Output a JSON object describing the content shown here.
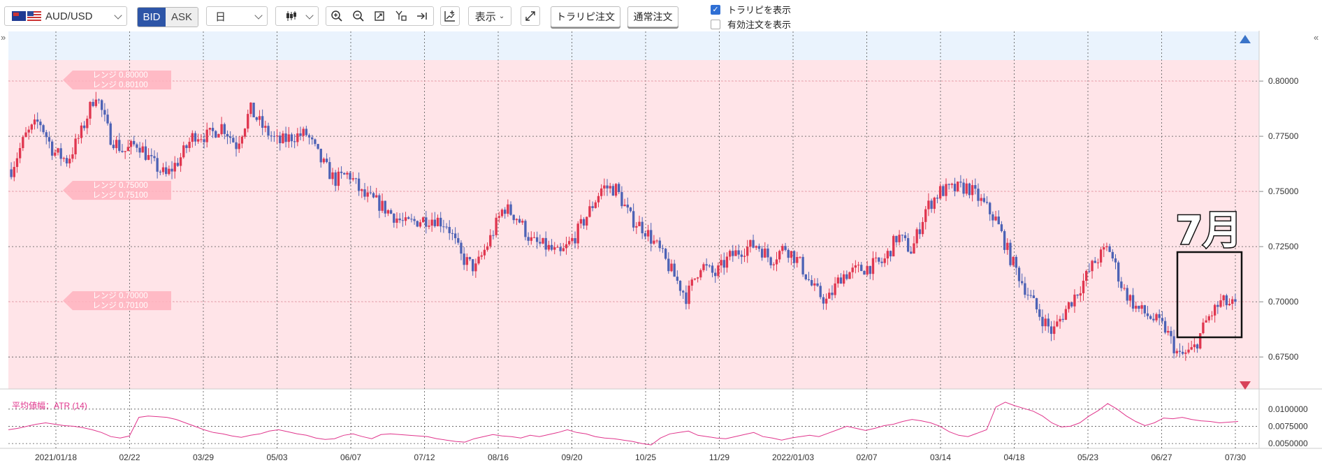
{
  "toolbar": {
    "symbol": "AUD/USD",
    "bid_label": "BID",
    "ask_label": "ASK",
    "period": "日",
    "display_label": "表示",
    "traripi_order": "トラリピ注文",
    "normal_order": "通常注文",
    "show_traripi": "トラリピを表示",
    "show_traripi_checked": true,
    "show_active_orders": "有効注文を表示",
    "show_active_orders_checked": false
  },
  "icons": [
    "candlestick-icon",
    "zoom-in-icon",
    "zoom-out-icon",
    "fit-icon",
    "crosshair-icon",
    "scroll-to-end-icon",
    "add-indicator-icon",
    "fullscreen-icon",
    "collapse-left-icon",
    "collapse-right-icon"
  ],
  "colors": {
    "up": "#e0364f",
    "down": "#4d62b5",
    "atr_line": "#e0358c",
    "range_band": "#ffe4e8",
    "upper_band": "#eaf3fd"
  },
  "annotation": {
    "text": "7月"
  },
  "range_labels": [
    "レンジ 0.80000",
    "レンジ 0.80100",
    "レンジ 0.75000",
    "レンジ 0.75100",
    "レンジ 0.70000",
    "レンジ 0.70100"
  ],
  "chart_data": [
    {
      "type": "candlestick",
      "x_labels": [
        "2021/01/18",
        "02/22",
        "03/29",
        "05/03",
        "06/07",
        "07/12",
        "08/16",
        "09/20",
        "10/25",
        "11/29",
        "2022/01/03",
        "02/07",
        "03/14",
        "04/18",
        "05/23",
        "06/27",
        "07/30"
      ],
      "y_ticks": [
        "0.80000",
        "0.77500",
        "0.75000",
        "0.72500",
        "0.70000",
        "0.67500"
      ],
      "ylim": [
        0.6605,
        0.8225
      ],
      "close_path": [
        [
          0,
          0.76
        ],
        [
          1,
          0.775
        ],
        [
          2,
          0.782
        ],
        [
          3,
          0.768
        ],
        [
          4,
          0.764
        ],
        [
          5,
          0.777
        ],
        [
          6,
          0.795
        ],
        [
          7,
          0.775
        ],
        [
          8,
          0.768
        ],
        [
          9,
          0.772
        ],
        [
          10,
          0.763
        ],
        [
          11,
          0.757
        ],
        [
          12,
          0.765
        ],
        [
          13,
          0.776
        ],
        [
          14,
          0.775
        ],
        [
          15,
          0.78
        ],
        [
          16,
          0.771
        ],
        [
          17,
          0.787
        ],
        [
          18,
          0.778
        ],
        [
          19,
          0.772
        ],
        [
          20,
          0.775
        ],
        [
          21,
          0.776
        ],
        [
          22,
          0.764
        ],
        [
          23,
          0.755
        ],
        [
          24,
          0.758
        ],
        [
          25,
          0.748
        ],
        [
          26,
          0.745
        ],
        [
          27,
          0.74
        ],
        [
          28,
          0.735
        ],
        [
          29,
          0.737
        ],
        [
          30,
          0.738
        ],
        [
          31,
          0.735
        ],
        [
          32,
          0.72
        ],
        [
          33,
          0.715
        ],
        [
          34,
          0.728
        ],
        [
          35,
          0.743
        ],
        [
          36,
          0.738
        ],
        [
          37,
          0.727
        ],
        [
          38,
          0.725
        ],
        [
          39,
          0.721
        ],
        [
          40,
          0.729
        ],
        [
          41,
          0.74
        ],
        [
          42,
          0.752
        ],
        [
          43,
          0.751
        ],
        [
          44,
          0.738
        ],
        [
          45,
          0.733
        ],
        [
          46,
          0.724
        ],
        [
          47,
          0.713
        ],
        [
          48,
          0.702
        ],
        [
          49,
          0.717
        ],
        [
          50,
          0.712
        ],
        [
          51,
          0.72
        ],
        [
          52,
          0.724
        ],
        [
          53,
          0.726
        ],
        [
          54,
          0.719
        ],
        [
          55,
          0.725
        ],
        [
          56,
          0.718
        ],
        [
          57,
          0.706
        ],
        [
          58,
          0.7
        ],
        [
          59,
          0.712
        ],
        [
          60,
          0.714
        ],
        [
          61,
          0.716
        ],
        [
          62,
          0.718
        ],
        [
          63,
          0.73
        ],
        [
          64,
          0.723
        ],
        [
          65,
          0.742
        ],
        [
          66,
          0.75
        ],
        [
          67,
          0.751
        ],
        [
          68,
          0.752
        ],
        [
          69,
          0.745
        ],
        [
          70,
          0.737
        ],
        [
          71,
          0.72
        ],
        [
          72,
          0.707
        ],
        [
          73,
          0.695
        ],
        [
          74,
          0.686
        ],
        [
          75,
          0.697
        ],
        [
          76,
          0.707
        ],
        [
          77,
          0.718
        ],
        [
          78,
          0.725
        ],
        [
          79,
          0.706
        ],
        [
          80,
          0.697
        ],
        [
          81,
          0.693
        ],
        [
          82,
          0.688
        ],
        [
          83,
          0.675
        ],
        [
          84,
          0.678
        ],
        [
          85,
          0.692
        ],
        [
          86,
          0.7
        ],
        [
          87,
          0.698
        ]
      ],
      "annotations": [
        "7月"
      ]
    },
    {
      "type": "line",
      "title": "平均値幅：ATR (14)",
      "y_ticks": [
        "0.0100000",
        "0.0075000",
        "0.0050000"
      ],
      "ylim": [
        0.0043,
        0.0115
      ],
      "series": [
        {
          "values": [
            0.007,
            0.0072,
            0.0075,
            0.0078,
            0.008,
            0.0078,
            0.0076,
            0.0075,
            0.0073,
            0.007,
            0.0066,
            0.006,
            0.0058,
            0.0061,
            0.0088,
            0.009,
            0.0089,
            0.0088,
            0.0085,
            0.008,
            0.0075,
            0.007,
            0.0066,
            0.0064,
            0.0061,
            0.0059,
            0.0062,
            0.0064,
            0.0068,
            0.007,
            0.0067,
            0.0064,
            0.0062,
            0.0058,
            0.0056,
            0.0057,
            0.0062,
            0.0064,
            0.006,
            0.0057,
            0.0063,
            0.0064,
            0.0063,
            0.0062,
            0.0061,
            0.006,
            0.0057,
            0.0055,
            0.0053,
            0.0052,
            0.0057,
            0.006,
            0.0063,
            0.0061,
            0.006,
            0.0058,
            0.0062,
            0.006,
            0.0063,
            0.0066,
            0.007,
            0.0066,
            0.0064,
            0.006,
            0.0058,
            0.0057,
            0.0055,
            0.0053,
            0.005,
            0.0048,
            0.0058,
            0.0064,
            0.0066,
            0.0068,
            0.0062,
            0.006,
            0.0058,
            0.0057,
            0.006,
            0.0063,
            0.0066,
            0.006,
            0.0058,
            0.0055,
            0.0058,
            0.006,
            0.0062,
            0.006,
            0.0065,
            0.007,
            0.0075,
            0.0072,
            0.0069,
            0.0072,
            0.0076,
            0.0078,
            0.0082,
            0.0085,
            0.0083,
            0.008,
            0.0075,
            0.0067,
            0.0062,
            0.006,
            0.0065,
            0.007,
            0.0103,
            0.011,
            0.0105,
            0.0101,
            0.0097,
            0.009,
            0.008,
            0.0074,
            0.0075,
            0.008,
            0.009,
            0.0098,
            0.0108,
            0.01,
            0.009,
            0.0082,
            0.0076,
            0.008,
            0.0087,
            0.0086,
            0.0088,
            0.0085,
            0.0083,
            0.0082,
            0.008,
            0.0081,
            0.0082
          ]
        }
      ]
    }
  ]
}
